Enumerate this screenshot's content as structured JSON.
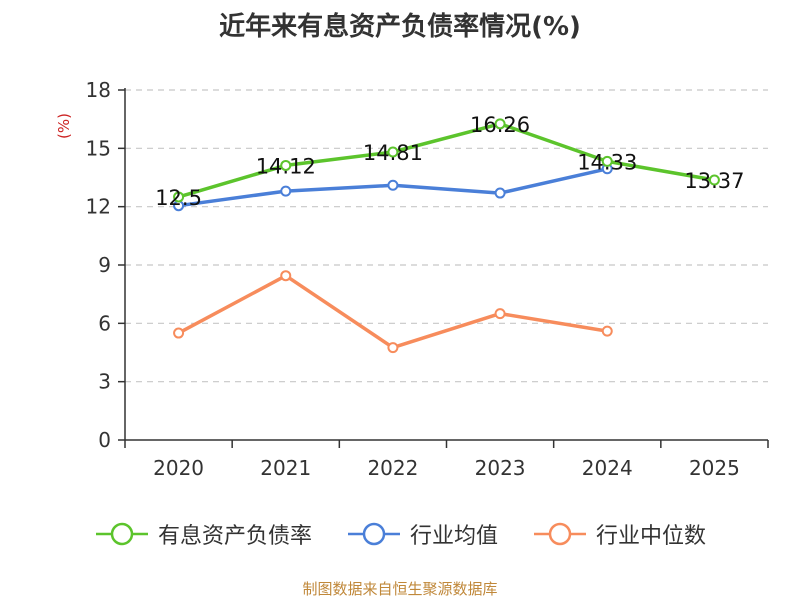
{
  "title": "近年来有息资产负债率情况(%)",
  "chart_data": {
    "type": "line",
    "categories": [
      "2020",
      "2021",
      "2022",
      "2023",
      "2024",
      "2025"
    ],
    "ylabel": "(%)",
    "ylim": [
      0,
      18
    ],
    "yticks": [
      0,
      3,
      6,
      9,
      12,
      15,
      18
    ],
    "grid": true,
    "legend_position": "bottom",
    "series": [
      {
        "name": "有息资产负债率",
        "color": "#5cc42c",
        "values": [
          12.5,
          14.12,
          14.81,
          16.26,
          14.33,
          13.37
        ],
        "data_labels": [
          "12.5",
          "14.12",
          "14.81",
          "16.26",
          "14.33",
          "13.37"
        ]
      },
      {
        "name": "行业均值",
        "color": "#4a7fd8",
        "values": [
          12.05,
          12.8,
          13.1,
          12.7,
          13.95,
          null
        ]
      },
      {
        "name": "行业中位数",
        "color": "#f78c5c",
        "values": [
          5.5,
          8.45,
          4.75,
          6.5,
          5.6,
          null
        ]
      }
    ]
  },
  "source_text": "制图数据来自恒生聚源数据库"
}
